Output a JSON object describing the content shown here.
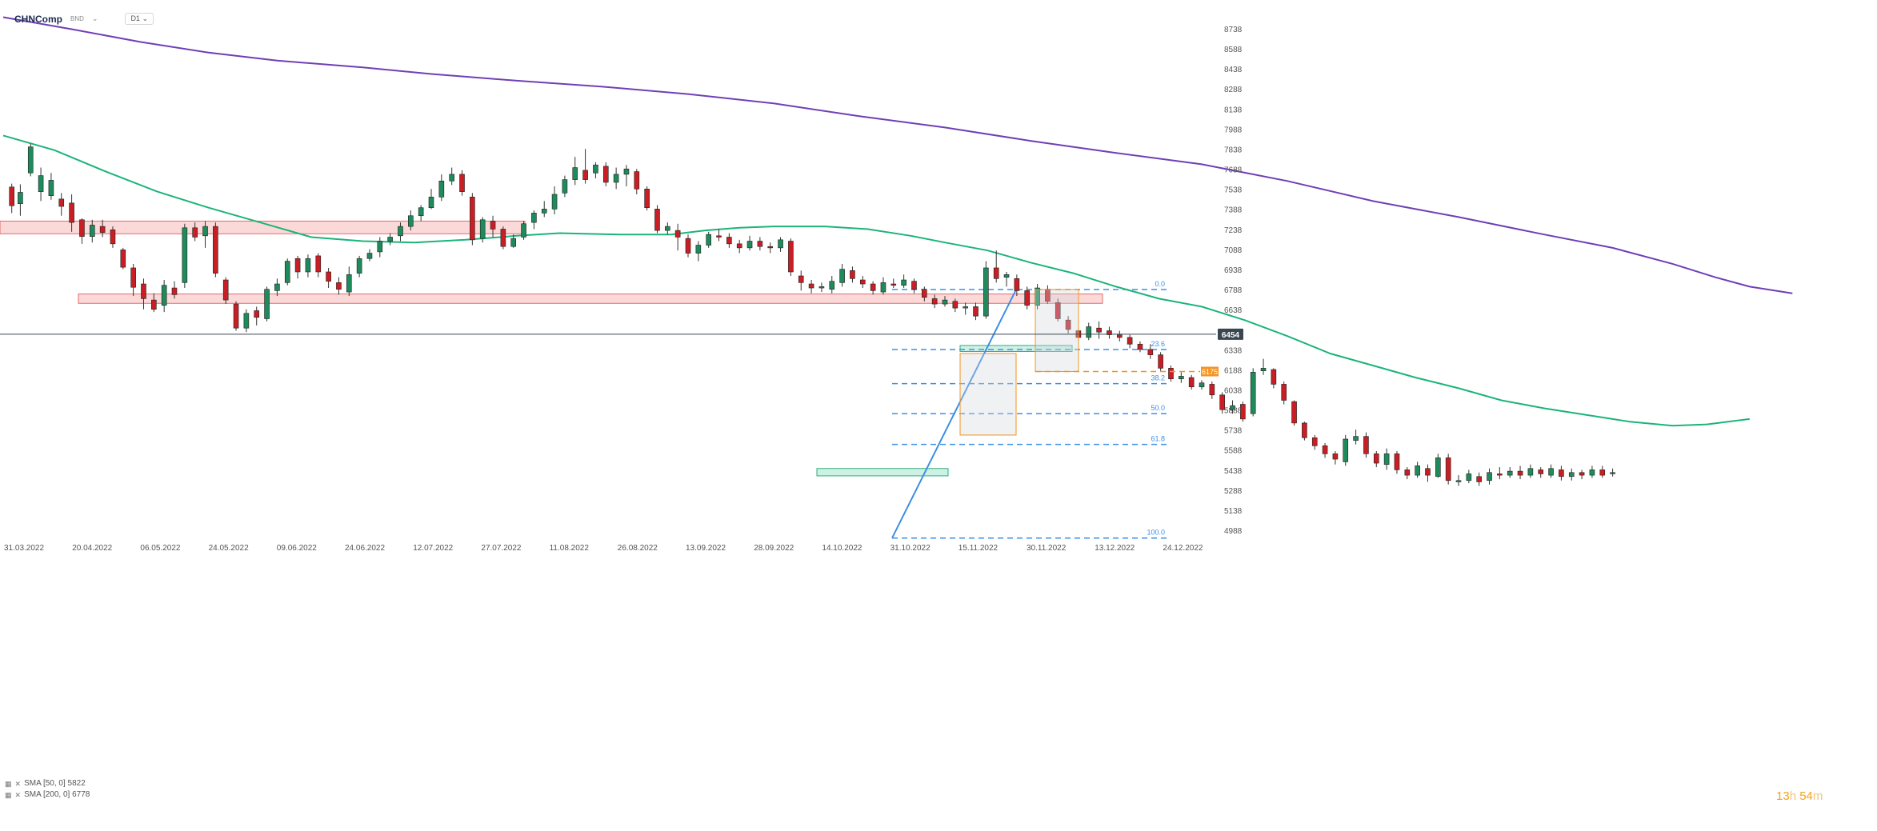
{
  "header": {
    "symbol": "CHNComp",
    "currency": "BND",
    "timeframe": "D1"
  },
  "legend": [
    "SMA [50, 0] 5822",
    "SMA [200, 0] 6778"
  ],
  "timer": {
    "hours": "13",
    "h_unit": "h",
    "minutes": "54",
    "m_unit": "m"
  },
  "colors": {
    "bull": "#1f8a5c",
    "bear": "#c81e24",
    "sma50": "#1cb47a",
    "sma200": "#6f3fb6",
    "fib": "#3d8fe8",
    "accent": "#f5941f",
    "price": "#3a4750"
  },
  "chart_data": {
    "type": "candlestick",
    "y_ticks": [
      8738,
      8588,
      8438,
      8288,
      8138,
      7988,
      7838,
      7688,
      7538,
      7388,
      7238,
      7088,
      6938,
      6788,
      6638,
      6338,
      6188,
      6038,
      5888,
      5738,
      5588,
      5438,
      5288,
      5138,
      4988
    ],
    "x_ticks": [
      "31.03.2022",
      "20.04.2022",
      "06.05.2022",
      "24.05.2022",
      "09.06.2022",
      "24.06.2022",
      "12.07.2022",
      "27.07.2022",
      "11.08.2022",
      "26.08.2022",
      "13.09.2022",
      "28.09.2022",
      "14.10.2022",
      "31.10.2022",
      "15.11.2022",
      "30.11.2022",
      "13.12.2022",
      "24.12.2022"
    ],
    "current_price": 6454,
    "price_label": "6454",
    "target_label": "6175",
    "target_level": 6175,
    "fibonacci": {
      "labels": [
        "0.0",
        "23.6",
        "38.2",
        "50.0",
        "61.8",
        "100.0"
      ],
      "levels": [
        6788,
        6340,
        6085,
        5860,
        5630,
        4930
      ]
    },
    "zones": [
      {
        "low": 7205,
        "high": 7300
      },
      {
        "low": 6685,
        "high": 6755
      }
    ],
    "green_zones": [
      {
        "low": 5395,
        "high": 5450
      },
      {
        "low": 6325,
        "high": 6370
      }
    ],
    "sma200": [
      [
        0,
        8825
      ],
      [
        80,
        8735
      ],
      [
        160,
        8640
      ],
      [
        240,
        8560
      ],
      [
        320,
        8500
      ],
      [
        420,
        8450
      ],
      [
        500,
        8400
      ],
      [
        600,
        8350
      ],
      [
        700,
        8305
      ],
      [
        800,
        8250
      ],
      [
        900,
        8180
      ],
      [
        1000,
        8085
      ],
      [
        1100,
        8000
      ],
      [
        1200,
        7900
      ],
      [
        1300,
        7810
      ],
      [
        1400,
        7725
      ],
      [
        1500,
        7600
      ],
      [
        1600,
        7450
      ],
      [
        1700,
        7330
      ],
      [
        1800,
        7200
      ],
      [
        1880,
        7100
      ],
      [
        1950,
        6980
      ],
      [
        2000,
        6880
      ],
      [
        2040,
        6810
      ],
      [
        2090,
        6760
      ]
    ],
    "sma50": [
      [
        0,
        7940
      ],
      [
        60,
        7830
      ],
      [
        120,
        7670
      ],
      [
        180,
        7520
      ],
      [
        240,
        7400
      ],
      [
        300,
        7290
      ],
      [
        360,
        7180
      ],
      [
        420,
        7150
      ],
      [
        480,
        7140
      ],
      [
        540,
        7160
      ],
      [
        600,
        7190
      ],
      [
        650,
        7210
      ],
      [
        720,
        7200
      ],
      [
        780,
        7200
      ],
      [
        820,
        7230
      ],
      [
        860,
        7250
      ],
      [
        900,
        7260
      ],
      [
        960,
        7260
      ],
      [
        1010,
        7240
      ],
      [
        1060,
        7190
      ],
      [
        1100,
        7140
      ],
      [
        1150,
        7080
      ],
      [
        1200,
        6990
      ],
      [
        1250,
        6910
      ],
      [
        1300,
        6810
      ],
      [
        1350,
        6720
      ],
      [
        1400,
        6660
      ],
      [
        1450,
        6560
      ],
      [
        1500,
        6440
      ],
      [
        1550,
        6310
      ],
      [
        1600,
        6220
      ],
      [
        1650,
        6130
      ],
      [
        1700,
        6050
      ],
      [
        1750,
        5960
      ],
      [
        1800,
        5900
      ],
      [
        1850,
        5850
      ],
      [
        1900,
        5800
      ],
      [
        1950,
        5770
      ],
      [
        1990,
        5780
      ],
      [
        2040,
        5820
      ]
    ],
    "candles": [
      [
        10,
        7555,
        7415,
        7580,
        7360
      ],
      [
        20,
        7430,
        7515,
        7575,
        7340
      ],
      [
        32,
        7660,
        7855,
        7880,
        7635
      ],
      [
        44,
        7520,
        7640,
        7700,
        7450
      ],
      [
        56,
        7490,
        7605,
        7660,
        7460
      ],
      [
        68,
        7465,
        7410,
        7510,
        7340
      ],
      [
        80,
        7435,
        7290,
        7500,
        7220
      ],
      [
        92,
        7310,
        7185,
        7320,
        7130
      ],
      [
        104,
        7185,
        7270,
        7310,
        7140
      ],
      [
        116,
        7260,
        7215,
        7310,
        7180
      ],
      [
        128,
        7235,
        7130,
        7260,
        7100
      ],
      [
        140,
        7085,
        6955,
        7100,
        6940
      ],
      [
        152,
        6950,
        6805,
        6980,
        6740
      ],
      [
        164,
        6830,
        6720,
        6870,
        6640
      ],
      [
        176,
        6710,
        6640,
        6760,
        6620
      ],
      [
        188,
        6670,
        6820,
        6860,
        6620
      ],
      [
        200,
        6800,
        6750,
        6850,
        6720
      ],
      [
        212,
        6840,
        7250,
        7280,
        6800
      ],
      [
        224,
        7250,
        7180,
        7290,
        7150
      ],
      [
        236,
        7190,
        7260,
        7300,
        7100
      ],
      [
        248,
        7260,
        6910,
        7290,
        6880
      ],
      [
        260,
        6860,
        6710,
        6880,
        6680
      ],
      [
        272,
        6680,
        6500,
        6700,
        6480
      ],
      [
        284,
        6500,
        6610,
        6640,
        6470
      ],
      [
        296,
        6630,
        6580,
        6660,
        6520
      ],
      [
        308,
        6570,
        6790,
        6810,
        6550
      ],
      [
        320,
        6780,
        6830,
        6870,
        6740
      ],
      [
        332,
        6840,
        7000,
        7020,
        6820
      ],
      [
        344,
        7020,
        6920,
        7040,
        6870
      ],
      [
        356,
        6920,
        7020,
        7050,
        6880
      ],
      [
        368,
        7040,
        6920,
        7060,
        6880
      ],
      [
        380,
        6920,
        6850,
        6950,
        6800
      ],
      [
        392,
        6840,
        6790,
        6880,
        6750
      ],
      [
        404,
        6770,
        6900,
        6960,
        6740
      ],
      [
        416,
        6910,
        7020,
        7040,
        6880
      ],
      [
        428,
        7020,
        7060,
        7090,
        7000
      ],
      [
        440,
        7070,
        7150,
        7180,
        7030
      ],
      [
        452,
        7150,
        7180,
        7210,
        7120
      ],
      [
        464,
        7190,
        7260,
        7290,
        7150
      ],
      [
        476,
        7260,
        7340,
        7380,
        7230
      ],
      [
        488,
        7340,
        7400,
        7420,
        7300
      ],
      [
        500,
        7400,
        7480,
        7540,
        7390
      ],
      [
        512,
        7480,
        7600,
        7650,
        7450
      ],
      [
        524,
        7600,
        7650,
        7700,
        7570
      ],
      [
        536,
        7650,
        7520,
        7680,
        7490
      ],
      [
        548,
        7480,
        7160,
        7510,
        7120
      ],
      [
        560,
        7170,
        7310,
        7330,
        7140
      ],
      [
        572,
        7300,
        7240,
        7340,
        7180
      ],
      [
        584,
        7240,
        7110,
        7260,
        7090
      ],
      [
        596,
        7110,
        7170,
        7200,
        7100
      ],
      [
        608,
        7180,
        7280,
        7300,
        7160
      ],
      [
        620,
        7290,
        7360,
        7380,
        7240
      ],
      [
        632,
        7360,
        7390,
        7450,
        7330
      ],
      [
        644,
        7390,
        7500,
        7560,
        7350
      ],
      [
        656,
        7510,
        7610,
        7640,
        7480
      ],
      [
        668,
        7610,
        7700,
        7780,
        7570
      ],
      [
        680,
        7680,
        7610,
        7840,
        7580
      ],
      [
        692,
        7660,
        7720,
        7740,
        7620
      ],
      [
        704,
        7710,
        7590,
        7740,
        7560
      ],
      [
        716,
        7590,
        7650,
        7700,
        7540
      ],
      [
        728,
        7650,
        7690,
        7720,
        7560
      ],
      [
        740,
        7670,
        7540,
        7690,
        7500
      ],
      [
        752,
        7540,
        7400,
        7560,
        7380
      ],
      [
        764,
        7390,
        7230,
        7420,
        7210
      ],
      [
        776,
        7230,
        7260,
        7290,
        7200
      ],
      [
        788,
        7230,
        7180,
        7280,
        7080
      ],
      [
        800,
        7170,
        7060,
        7200,
        7030
      ],
      [
        812,
        7060,
        7120,
        7150,
        7000
      ],
      [
        824,
        7120,
        7200,
        7220,
        7100
      ],
      [
        836,
        7190,
        7180,
        7240,
        7150
      ],
      [
        848,
        7180,
        7130,
        7210,
        7100
      ],
      [
        860,
        7130,
        7100,
        7160,
        7060
      ],
      [
        872,
        7100,
        7150,
        7190,
        7080
      ],
      [
        884,
        7150,
        7110,
        7180,
        7080
      ],
      [
        896,
        7110,
        7100,
        7140,
        7060
      ],
      [
        908,
        7100,
        7160,
        7180,
        7070
      ],
      [
        920,
        7150,
        6920,
        7170,
        6890
      ],
      [
        932,
        6890,
        6840,
        6930,
        6780
      ],
      [
        944,
        6830,
        6800,
        6860,
        6760
      ],
      [
        956,
        6800,
        6810,
        6840,
        6770
      ],
      [
        968,
        6790,
        6850,
        6890,
        6760
      ],
      [
        980,
        6840,
        6940,
        6980,
        6810
      ],
      [
        992,
        6930,
        6870,
        6960,
        6840
      ],
      [
        1004,
        6860,
        6830,
        6890,
        6800
      ],
      [
        1016,
        6830,
        6780,
        6850,
        6750
      ],
      [
        1028,
        6770,
        6840,
        6880,
        6750
      ],
      [
        1040,
        6830,
        6820,
        6870,
        6800
      ],
      [
        1052,
        6820,
        6860,
        6900,
        6800
      ],
      [
        1064,
        6850,
        6790,
        6870,
        6760
      ],
      [
        1076,
        6790,
        6730,
        6810,
        6700
      ],
      [
        1088,
        6720,
        6680,
        6750,
        6650
      ],
      [
        1100,
        6680,
        6710,
        6740,
        6660
      ],
      [
        1112,
        6700,
        6650,
        6720,
        6620
      ],
      [
        1124,
        6650,
        6660,
        6690,
        6600
      ],
      [
        1136,
        6660,
        6590,
        6690,
        6560
      ],
      [
        1148,
        6590,
        6950,
        7000,
        6570
      ],
      [
        1160,
        6950,
        6870,
        7080,
        6840
      ],
      [
        1172,
        6880,
        6900,
        6920,
        6810
      ],
      [
        1184,
        6870,
        6780,
        6900,
        6740
      ],
      [
        1196,
        6780,
        6670,
        6810,
        6640
      ],
      [
        1208,
        6670,
        6800,
        6830,
        6640
      ],
      [
        1220,
        6790,
        6700,
        6820,
        6680
      ],
      [
        1232,
        6690,
        6570,
        6720,
        6550
      ],
      [
        1244,
        6560,
        6490,
        6590,
        6460
      ],
      [
        1256,
        6480,
        6430,
        6510,
        6400
      ],
      [
        1268,
        6430,
        6510,
        6540,
        6410
      ],
      [
        1280,
        6500,
        6470,
        6550,
        6420
      ],
      [
        1292,
        6480,
        6450,
        6510,
        6420
      ],
      [
        1304,
        6450,
        6430,
        6480,
        6400
      ],
      [
        1316,
        6430,
        6380,
        6450,
        6350
      ],
      [
        1328,
        6380,
        6340,
        6400,
        6320
      ],
      [
        1340,
        6340,
        6300,
        6380,
        6270
      ],
      [
        1352,
        6300,
        6200,
        6320,
        6180
      ],
      [
        1364,
        6200,
        6120,
        6220,
        6100
      ],
      [
        1376,
        6120,
        6140,
        6170,
        6090
      ],
      [
        1388,
        6130,
        6060,
        6150,
        6040
      ],
      [
        1400,
        6060,
        6090,
        6110,
        6040
      ],
      [
        1412,
        6080,
        6000,
        6100,
        5970
      ],
      [
        1424,
        6000,
        5890,
        6020,
        5860
      ],
      [
        1436,
        5890,
        5920,
        5960,
        5860
      ],
      [
        1448,
        5930,
        5820,
        5950,
        5800
      ],
      [
        1460,
        5860,
        6170,
        6200,
        5840
      ],
      [
        1472,
        6180,
        6200,
        6270,
        6150
      ],
      [
        1484,
        6190,
        6080,
        6200,
        6050
      ],
      [
        1496,
        6080,
        5960,
        6100,
        5930
      ],
      [
        1508,
        5950,
        5790,
        5960,
        5770
      ],
      [
        1520,
        5790,
        5680,
        5800,
        5660
      ],
      [
        1532,
        5680,
        5620,
        5700,
        5590
      ],
      [
        1544,
        5620,
        5560,
        5640,
        5530
      ],
      [
        1556,
        5560,
        5520,
        5580,
        5480
      ],
      [
        1568,
        5500,
        5670,
        5700,
        5470
      ],
      [
        1580,
        5660,
        5690,
        5740,
        5630
      ],
      [
        1592,
        5690,
        5560,
        5720,
        5530
      ],
      [
        1604,
        5560,
        5490,
        5580,
        5460
      ],
      [
        1616,
        5480,
        5560,
        5600,
        5440
      ],
      [
        1628,
        5560,
        5440,
        5580,
        5410
      ],
      [
        1640,
        5440,
        5400,
        5460,
        5370
      ],
      [
        1652,
        5400,
        5470,
        5500,
        5380
      ],
      [
        1664,
        5450,
        5400,
        5480,
        5350
      ],
      [
        1676,
        5390,
        5530,
        5560,
        5380
      ],
      [
        1688,
        5530,
        5360,
        5560,
        5330
      ],
      [
        1700,
        5350,
        5360,
        5400,
        5320
      ],
      [
        1712,
        5360,
        5410,
        5440,
        5340
      ],
      [
        1724,
        5390,
        5350,
        5420,
        5320
      ],
      [
        1736,
        5360,
        5420,
        5450,
        5330
      ],
      [
        1748,
        5410,
        5400,
        5460,
        5370
      ],
      [
        1760,
        5400,
        5430,
        5460,
        5380
      ],
      [
        1772,
        5430,
        5400,
        5470,
        5370
      ],
      [
        1784,
        5400,
        5450,
        5480,
        5380
      ],
      [
        1796,
        5440,
        5410,
        5460,
        5380
      ],
      [
        1808,
        5400,
        5450,
        5480,
        5380
      ],
      [
        1820,
        5440,
        5390,
        5470,
        5360
      ],
      [
        1832,
        5390,
        5420,
        5450,
        5360
      ],
      [
        1844,
        5420,
        5400,
        5440,
        5370
      ],
      [
        1856,
        5400,
        5440,
        5470,
        5380
      ],
      [
        1868,
        5440,
        5400,
        5470,
        5380
      ],
      [
        1880,
        5410,
        5420,
        5450,
        5390
      ]
    ]
  }
}
